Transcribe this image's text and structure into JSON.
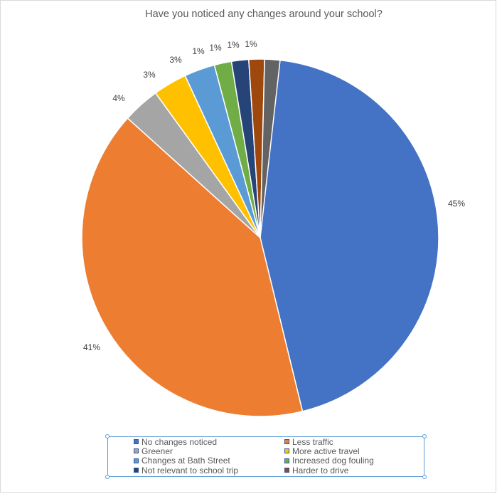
{
  "chart_data": {
    "type": "pie",
    "title": "Have you noticed any changes around your school?",
    "series": [
      {
        "name": "No changes noticed",
        "value": 45,
        "label": "45%",
        "color": "#4472c4"
      },
      {
        "name": "Less traffic",
        "value": 41,
        "label": "41%",
        "color": "#ed7d31"
      },
      {
        "name": "Greener",
        "value": 4,
        "label": "4%",
        "color": "#a5a5a5"
      },
      {
        "name": "More active travel",
        "value": 3,
        "label": "3%",
        "color": "#ffc000"
      },
      {
        "name": "Changes at Bath Street",
        "value": 3,
        "label": "3%",
        "color": "#5b9bd5"
      },
      {
        "name": "Increased dog fouling",
        "value": 1,
        "label": "1%",
        "color": "#70ad47"
      },
      {
        "name": "Not relevant to school trip",
        "value": 1,
        "label": "1%",
        "color": "#264478"
      },
      {
        "name": "Harder to drive",
        "value": 1,
        "label": "1%",
        "color": "#9e480e"
      },
      {
        "name": "",
        "value": 1,
        "label": "1%",
        "color": "#636363"
      }
    ],
    "legend_position": "bottom"
  }
}
